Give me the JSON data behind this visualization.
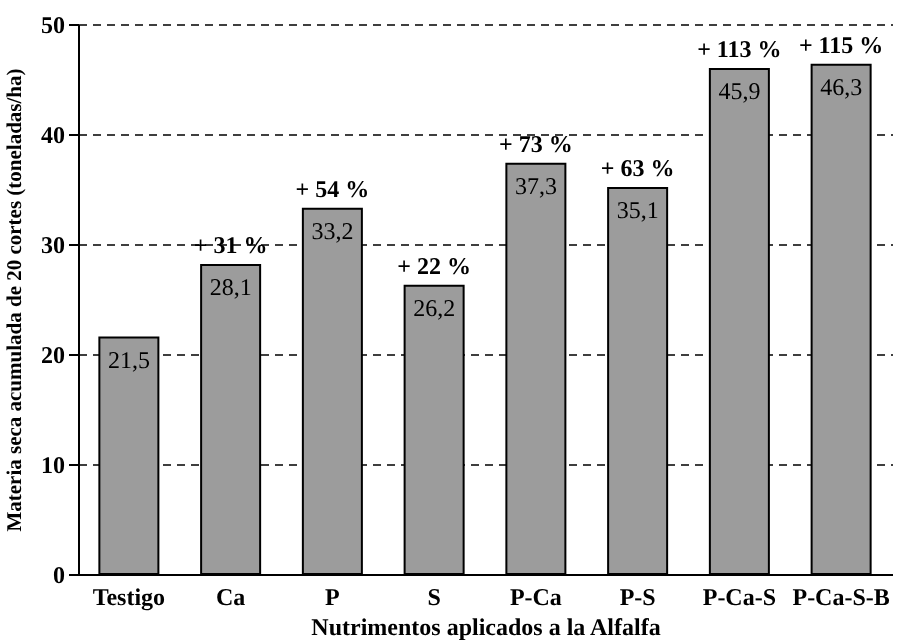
{
  "chart_data": {
    "type": "bar",
    "xlabel": "Nutrimentos aplicados a la Alfalfa",
    "ylabel": "Materia seca acumulada de 20 cortes (toneladas/ha)",
    "categories": [
      "Testigo",
      "Ca",
      "P",
      "S",
      "P-Ca",
      "P-S",
      "P-Ca-S",
      "P-Ca-S-B"
    ],
    "values": [
      21.5,
      28.1,
      33.2,
      26.2,
      37.3,
      35.1,
      45.9,
      46.3
    ],
    "value_labels": [
      "21,5",
      "28,1",
      "33,2",
      "26,2",
      "37,3",
      "35,1",
      "45,9",
      "46,3"
    ],
    "color": "#9c9c9c",
    "ylim": [
      0,
      50
    ],
    "yticks": [
      0,
      10,
      20,
      30,
      40,
      50
    ],
    "grid": "y",
    "annotations": [
      {
        "text": "+ 31 %",
        "x": "Ca",
        "y": 28.1
      },
      {
        "text": "+ 54 %",
        "x": "P",
        "y": 33.2
      },
      {
        "text": "+ 22 %",
        "x": "S",
        "y": 26.2
      },
      {
        "text": "+ 73 %",
        "x": "P-Ca",
        "y": 37.3
      },
      {
        "text": "+ 63 %",
        "x": "P-S",
        "y": 35.1
      },
      {
        "text": "+ 113 %",
        "x": "P-Ca-S",
        "y": 45.9
      },
      {
        "text": "+ 115 %",
        "x": "P-Ca-S-B",
        "y": 46.3
      }
    ]
  }
}
